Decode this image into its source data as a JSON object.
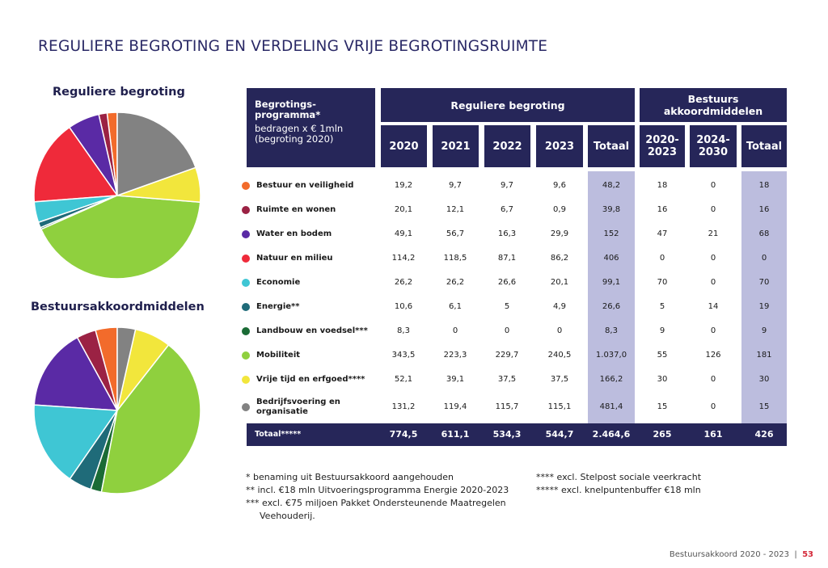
{
  "page_title": "REGULIERE BEGROTING EN VERDELING VRIJE BEGROTINGSRUIMTE",
  "pie1_title": "Reguliere begroting",
  "pie2_title": "Bestuursakkoordmiddelen",
  "table": {
    "corner_title": "Begrotings-\nprogramma*",
    "corner_sub": "bedragen x € 1mln\n(begroting 2020)",
    "group1": "Reguliere begroting",
    "group2": "Bestuurs\nakkoordmiddelen",
    "columns": [
      "2020",
      "2021",
      "2022",
      "2023",
      "Totaal",
      "2020-\n2023",
      "2024-\n2030",
      "Totaal"
    ],
    "rows": [
      {
        "label": "Bestuur en veiligheid",
        "color": "#f26b2b",
        "values": [
          "19,2",
          "9,7",
          "9,7",
          "9,6",
          "48,2",
          "18",
          "0",
          "18"
        ]
      },
      {
        "label": "Ruimte en wonen",
        "color": "#9b2244",
        "values": [
          "20,1",
          "12,1",
          "6,7",
          "0,9",
          "39,8",
          "16",
          "0",
          "16"
        ]
      },
      {
        "label": "Water en bodem",
        "color": "#5a2aa5",
        "values": [
          "49,1",
          "56,7",
          "16,3",
          "29,9",
          "152",
          "47",
          "21",
          "68"
        ]
      },
      {
        "label": "Natuur en milieu",
        "color": "#ef2a3a",
        "values": [
          "114,2",
          "118,5",
          "87,1",
          "86,2",
          "406",
          "0",
          "0",
          "0"
        ]
      },
      {
        "label": "Economie",
        "color": "#3fc6d4",
        "values": [
          "26,2",
          "26,2",
          "26,6",
          "20,1",
          "99,1",
          "70",
          "0",
          "70"
        ]
      },
      {
        "label": "Energie**",
        "color": "#1f6b79",
        "values": [
          "10,6",
          "6,1",
          "5",
          "4,9",
          "26,6",
          "5",
          "14",
          "19"
        ]
      },
      {
        "label": "Landbouw en voedsel***",
        "color": "#1a6b35",
        "values": [
          "8,3",
          "0",
          "0",
          "0",
          "8,3",
          "9",
          "0",
          "9"
        ]
      },
      {
        "label": "Mobiliteit",
        "color": "#8fd03e",
        "values": [
          "343,5",
          "223,3",
          "229,7",
          "240,5",
          "1.037,0",
          "55",
          "126",
          "181"
        ]
      },
      {
        "label": "Vrije tijd en erfgoed****",
        "color": "#f2e63c",
        "values": [
          "52,1",
          "39,1",
          "37,5",
          "37,5",
          "166,2",
          "30",
          "0",
          "30"
        ]
      },
      {
        "label": "Bedrijfsvoering en\norganisatie",
        "color": "#828282",
        "values": [
          "131,2",
          "119,4",
          "115,7",
          "115,1",
          "481,4",
          "15",
          "0",
          "15"
        ]
      }
    ],
    "total": {
      "label": "Totaal*****",
      "values": [
        "774,5",
        "611,1",
        "534,3",
        "544,7",
        "2.464,6",
        "265",
        "161",
        "426"
      ]
    }
  },
  "notes_left": [
    "* benaming uit Bestuursakkoord aangehouden",
    "** incl. €18 mln Uitvoeringsprogramma Energie 2020-2023",
    "*** excl. €75 miljoen Pakket Ondersteunende Maatregelen",
    "Veehouderij."
  ],
  "notes_right": [
    "**** excl. Stelpost sociale veerkracht",
    "***** excl. knelpuntenbuffer €18 mln"
  ],
  "footer": {
    "text": "Bestuursakkoord 2020 - 2023",
    "sep": "|",
    "page": "53"
  },
  "chart_data": [
    {
      "type": "pie",
      "title": "Reguliere begroting",
      "categories": [
        "Bestuur en veiligheid",
        "Ruimte en wonen",
        "Water en bodem",
        "Natuur en milieu",
        "Economie",
        "Energie**",
        "Landbouw en voedsel***",
        "Mobiliteit",
        "Vrije tijd en erfgoed****",
        "Bedrijfsvoering en organisatie"
      ],
      "values": [
        48.2,
        39.8,
        152,
        406,
        99.1,
        26.6,
        8.3,
        1037.0,
        166.2,
        481.4
      ],
      "colors": [
        "#f26b2b",
        "#9b2244",
        "#5a2aa5",
        "#ef2a3a",
        "#3fc6d4",
        "#1f6b79",
        "#1a6b35",
        "#8fd03e",
        "#f2e63c",
        "#828282"
      ]
    },
    {
      "type": "pie",
      "title": "Bestuursakkoordmiddelen",
      "categories": [
        "Bestuur en veiligheid",
        "Ruimte en wonen",
        "Water en bodem",
        "Natuur en milieu",
        "Economie",
        "Energie**",
        "Landbouw en voedsel***",
        "Mobiliteit",
        "Vrije tijd en erfgoed****",
        "Bedrijfsvoering en organisatie"
      ],
      "values": [
        18,
        16,
        68,
        0,
        70,
        19,
        9,
        181,
        30,
        15
      ],
      "colors": [
        "#f26b2b",
        "#9b2244",
        "#5a2aa5",
        "#ef2a3a",
        "#3fc6d4",
        "#1f6b79",
        "#1a6b35",
        "#8fd03e",
        "#f2e63c",
        "#828282"
      ]
    }
  ]
}
